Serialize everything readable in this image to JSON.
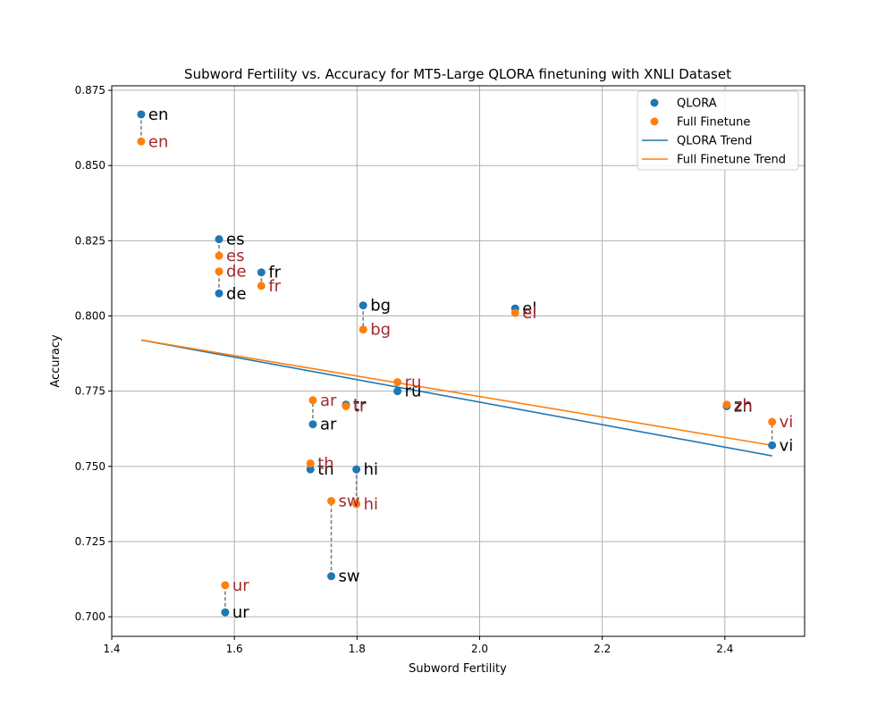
{
  "chart_data": {
    "type": "scatter",
    "title": "Subword Fertility vs. Accuracy for MT5-Large QLORA finetuning with XNLI Dataset",
    "xlabel": "Subword Fertility",
    "ylabel": "Accuracy",
    "xlim": [
      1.4,
      2.53
    ],
    "ylim": [
      0.6935,
      0.8765
    ],
    "xticks": [
      1.4,
      1.6,
      1.8,
      2.0,
      2.2,
      2.4
    ],
    "xtick_labels": [
      "1.4",
      "1.6",
      "1.8",
      "2.0",
      "2.2",
      "2.4"
    ],
    "yticks": [
      0.7,
      0.725,
      0.75,
      0.775,
      0.8,
      0.825,
      0.85,
      0.875
    ],
    "ytick_labels": [
      "0.700",
      "0.725",
      "0.750",
      "0.775",
      "0.800",
      "0.825",
      "0.850",
      "0.875"
    ],
    "grid": true,
    "legend_position": "top-right",
    "languages": [
      "en",
      "es",
      "de",
      "fr",
      "bg",
      "el",
      "ru",
      "ar",
      "tr",
      "th",
      "hi",
      "sw",
      "ur",
      "zh",
      "vi"
    ],
    "series": [
      {
        "name": "QLORA",
        "color": "#1f77b4",
        "label_color": "#000000",
        "points": [
          {
            "lang": "en",
            "x": 1.448,
            "y": 0.867
          },
          {
            "lang": "es",
            "x": 1.575,
            "y": 0.8255
          },
          {
            "lang": "de",
            "x": 1.575,
            "y": 0.8075
          },
          {
            "lang": "fr",
            "x": 1.644,
            "y": 0.8145
          },
          {
            "lang": "bg",
            "x": 1.81,
            "y": 0.8035
          },
          {
            "lang": "el",
            "x": 2.058,
            "y": 0.8025
          },
          {
            "lang": "ru",
            "x": 1.866,
            "y": 0.775
          },
          {
            "lang": "ar",
            "x": 1.728,
            "y": 0.764
          },
          {
            "lang": "tr",
            "x": 1.782,
            "y": 0.7705
          },
          {
            "lang": "th",
            "x": 1.724,
            "y": 0.749
          },
          {
            "lang": "hi",
            "x": 1.799,
            "y": 0.749
          },
          {
            "lang": "sw",
            "x": 1.758,
            "y": 0.7135
          },
          {
            "lang": "ur",
            "x": 1.585,
            "y": 0.7015
          },
          {
            "lang": "zh",
            "x": 2.403,
            "y": 0.77
          },
          {
            "lang": "vi",
            "x": 2.477,
            "y": 0.757
          }
        ]
      },
      {
        "name": "Full Finetune",
        "color": "#ff7f0e",
        "label_color": "#a52a2a",
        "points": [
          {
            "lang": "en",
            "x": 1.448,
            "y": 0.858
          },
          {
            "lang": "es",
            "x": 1.575,
            "y": 0.82
          },
          {
            "lang": "de",
            "x": 1.575,
            "y": 0.8148
          },
          {
            "lang": "fr",
            "x": 1.644,
            "y": 0.81
          },
          {
            "lang": "bg",
            "x": 1.81,
            "y": 0.7955
          },
          {
            "lang": "el",
            "x": 2.058,
            "y": 0.801
          },
          {
            "lang": "ru",
            "x": 1.866,
            "y": 0.778
          },
          {
            "lang": "ar",
            "x": 1.728,
            "y": 0.772
          },
          {
            "lang": "tr",
            "x": 1.782,
            "y": 0.77
          },
          {
            "lang": "th",
            "x": 1.724,
            "y": 0.751
          },
          {
            "lang": "hi",
            "x": 1.799,
            "y": 0.7375
          },
          {
            "lang": "sw",
            "x": 1.758,
            "y": 0.7385
          },
          {
            "lang": "ur",
            "x": 1.585,
            "y": 0.7105
          },
          {
            "lang": "zh",
            "x": 2.403,
            "y": 0.7705
          },
          {
            "lang": "vi",
            "x": 2.477,
            "y": 0.7648
          }
        ]
      }
    ],
    "trend_lines": [
      {
        "name": "QLORA Trend",
        "color": "#1f77b4",
        "x": [
          1.448,
          2.477
        ],
        "y": [
          0.792,
          0.7535
        ]
      },
      {
        "name": "Full Finetune Trend",
        "color": "#ff7f0e",
        "x": [
          1.448,
          2.477
        ],
        "y": [
          0.792,
          0.757
        ]
      }
    ],
    "connector_color": "#808080"
  }
}
